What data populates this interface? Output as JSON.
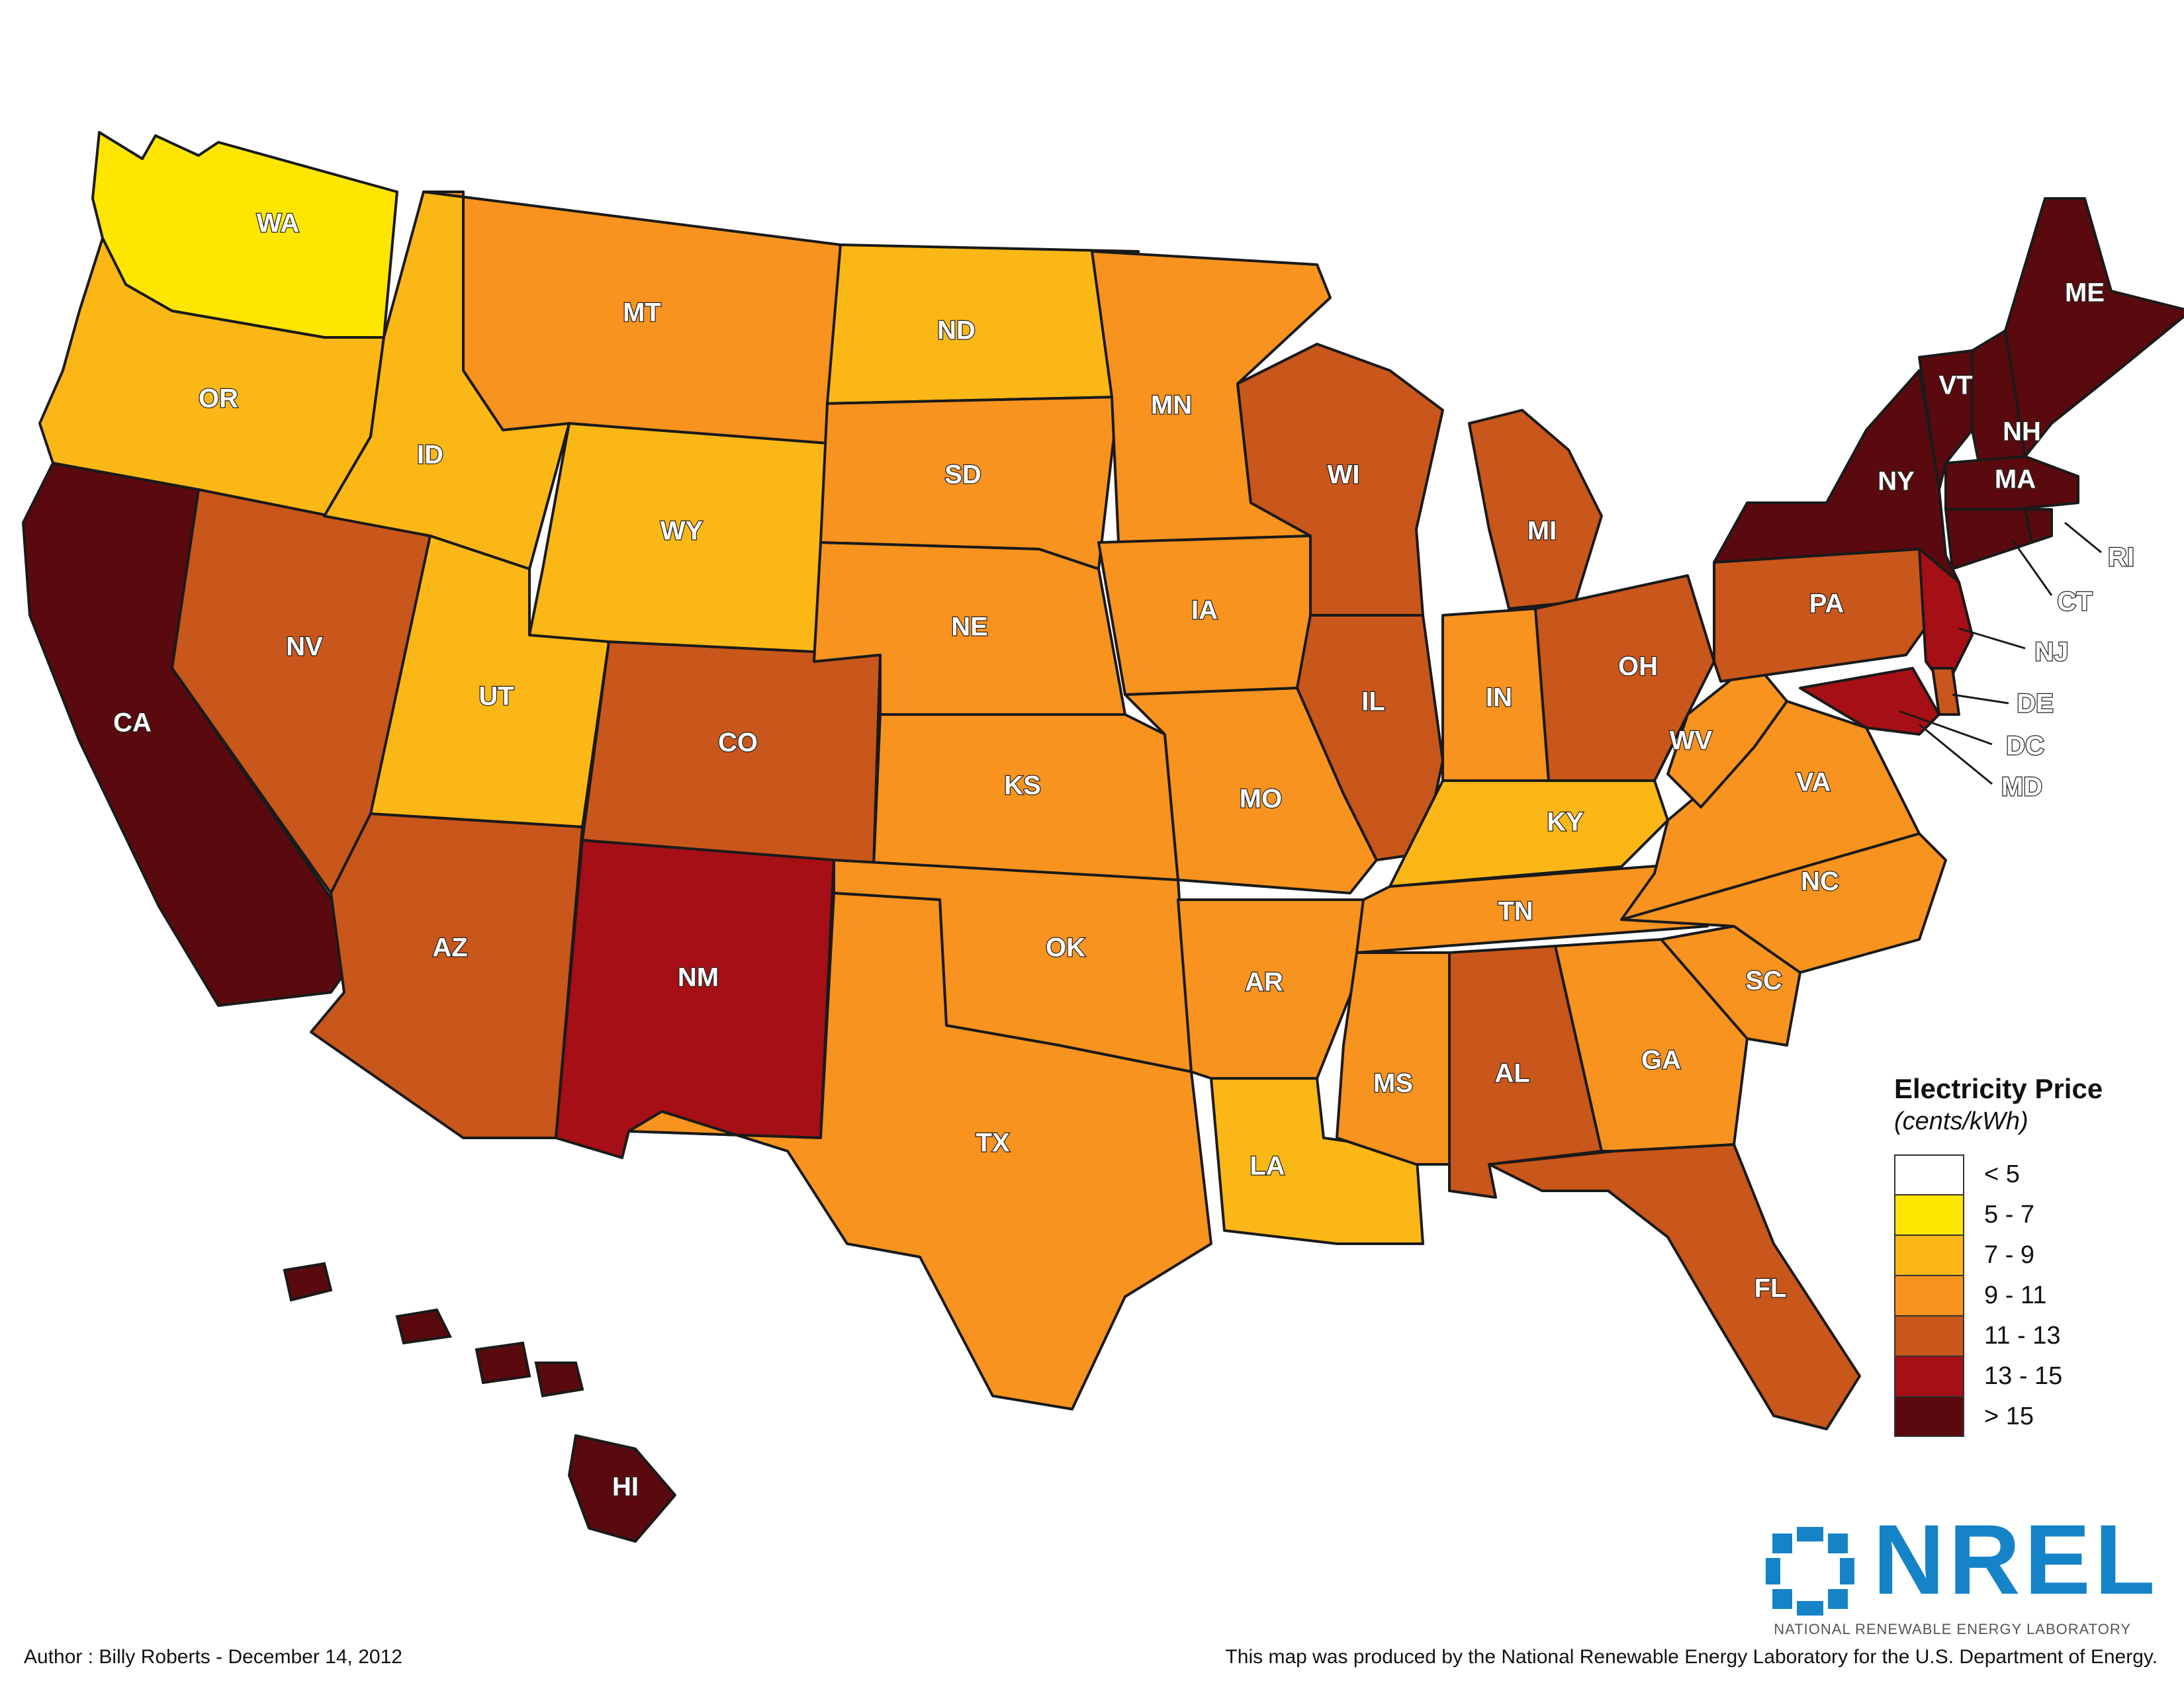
{
  "legend": {
    "title": "Electricity Price",
    "subtitle": "(cents/kWh)",
    "items": [
      {
        "label": "< 5",
        "color": "#ffffff"
      },
      {
        "label": "5 - 7",
        "color": "#ffe600"
      },
      {
        "label": "7 - 9",
        "color": "#fbb716"
      },
      {
        "label": "9 - 11",
        "color": "#f7931e"
      },
      {
        "label": "11 - 13",
        "color": "#c9561a"
      },
      {
        "label": "13 - 15",
        "color": "#a50f15"
      },
      {
        "label": "> 15",
        "color": "#5a0a0e"
      }
    ]
  },
  "states": [
    {
      "abbr": "WA",
      "band": 1
    },
    {
      "abbr": "OR",
      "band": 2
    },
    {
      "abbr": "CA",
      "band": 6
    },
    {
      "abbr": "NV",
      "band": 4
    },
    {
      "abbr": "ID",
      "band": 2
    },
    {
      "abbr": "MT",
      "band": 3
    },
    {
      "abbr": "WY",
      "band": 2
    },
    {
      "abbr": "UT",
      "band": 2
    },
    {
      "abbr": "AZ",
      "band": 4
    },
    {
      "abbr": "CO",
      "band": 4
    },
    {
      "abbr": "NM",
      "band": 5
    },
    {
      "abbr": "ND",
      "band": 2
    },
    {
      "abbr": "SD",
      "band": 3
    },
    {
      "abbr": "NE",
      "band": 3
    },
    {
      "abbr": "KS",
      "band": 3
    },
    {
      "abbr": "OK",
      "band": 3
    },
    {
      "abbr": "TX",
      "band": 3
    },
    {
      "abbr": "MN",
      "band": 3
    },
    {
      "abbr": "IA",
      "band": 3
    },
    {
      "abbr": "MO",
      "band": 3
    },
    {
      "abbr": "AR",
      "band": 3
    },
    {
      "abbr": "LA",
      "band": 2
    },
    {
      "abbr": "WI",
      "band": 4
    },
    {
      "abbr": "IL",
      "band": 4
    },
    {
      "abbr": "MI",
      "band": 4
    },
    {
      "abbr": "IN",
      "band": 3
    },
    {
      "abbr": "OH",
      "band": 4
    },
    {
      "abbr": "KY",
      "band": 2
    },
    {
      "abbr": "TN",
      "band": 3
    },
    {
      "abbr": "MS",
      "band": 3
    },
    {
      "abbr": "AL",
      "band": 4
    },
    {
      "abbr": "GA",
      "band": 3
    },
    {
      "abbr": "FL",
      "band": 4
    },
    {
      "abbr": "SC",
      "band": 3
    },
    {
      "abbr": "NC",
      "band": 3
    },
    {
      "abbr": "VA",
      "band": 3
    },
    {
      "abbr": "WV",
      "band": 3
    },
    {
      "abbr": "PA",
      "band": 4
    },
    {
      "abbr": "NY",
      "band": 6
    },
    {
      "abbr": "VT",
      "band": 6
    },
    {
      "abbr": "NH",
      "band": 6
    },
    {
      "abbr": "ME",
      "band": 6
    },
    {
      "abbr": "MA",
      "band": 6
    },
    {
      "abbr": "RI",
      "band": 6
    },
    {
      "abbr": "CT",
      "band": 6
    },
    {
      "abbr": "NJ",
      "band": 5
    },
    {
      "abbr": "DE",
      "band": 4
    },
    {
      "abbr": "DC",
      "band": 5
    },
    {
      "abbr": "MD",
      "band": 5
    },
    {
      "abbr": "HI",
      "band": 6
    }
  ],
  "logo": {
    "text": "NREL",
    "subtitle": "NATIONAL RENEWABLE ENERGY LABORATORY"
  },
  "footer": {
    "author": "Author : Billy Roberts - December 14, 2012",
    "credit": "This map was produced by the National Renewable Energy Laboratory for the U.S. Department of Energy."
  }
}
